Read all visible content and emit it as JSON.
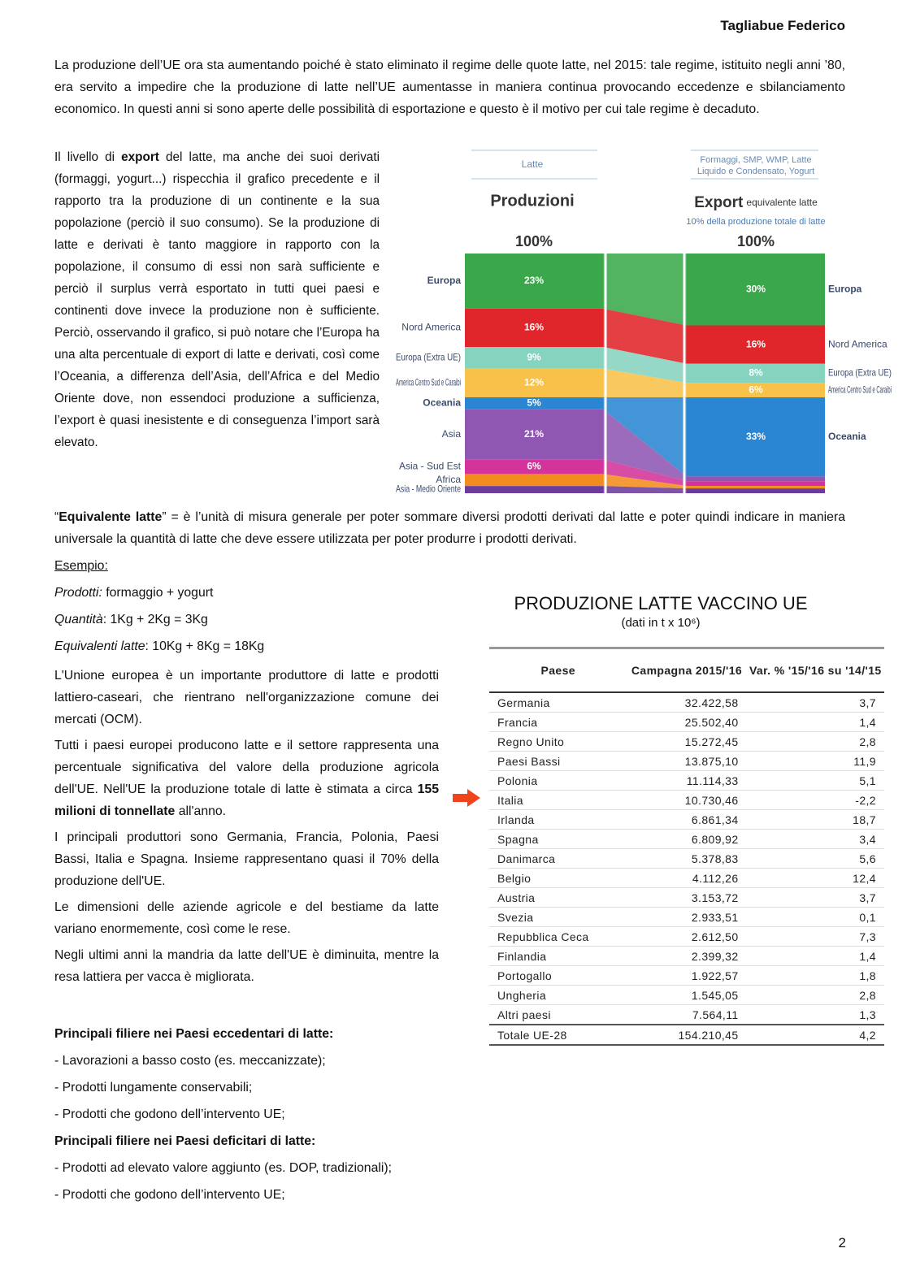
{
  "header": {
    "author": "Tagliabue Federico"
  },
  "intro": "La produzione dell’UE ora sta aumentando poiché è stato eliminato il regime delle quote latte, nel 2015: tale regime, istituito negli anni ’80, era servito a impedire che la produzione di latte nell’UE aumentasse in maniera continua provocando eccedenze e sbilanciamento economico. In questi anni si sono aperte delle possibilità di esportazione e questo è il motivo per cui tale regime è decaduto.",
  "export_text": [
    "Il livello di ",
    "export",
    " del latte, ma anche dei suoi derivati (formaggi, yogurt...) rispecchia il grafico precedente e il rapporto tra la produzione di un continente e la sua popolazione (perciò il suo consumo). Se la produzione di latte e derivati è tanto maggiore in rapporto con la popolazione, il consumo di essi non sarà sufficiente e perciò il surplus verrà esportato in tutti quei paesi e continenti dove invece la produzione non è sufficiente. Perciò, osservando il grafico, si può notare che l’Europa ha una alta percentuale di export di latte e derivati, così come l’Oceania, a differenza dell’Asia, dell’Africa e del Medio Oriente dove, non essendoci produzione a sufficienza, l’export è quasi inesistente e di conseguenza l’import sarà elevato."
  ],
  "chart_data": {
    "type": "stacked-bar",
    "headers": [
      "Latte",
      [
        "Formaggi, SMP, WMP, Latte",
        "Liquido e Condensato, Yogurt"
      ]
    ],
    "categories": [
      "Produzioni",
      "Export"
    ],
    "category_note": "equivalente latte",
    "export_note": "10% della produzione totale di latte",
    "total_labels": [
      "100%",
      "100%"
    ],
    "ylim": [
      0,
      100
    ],
    "series": [
      {
        "name": "Europa",
        "color": "#3aa84a",
        "values": [
          23,
          30
        ],
        "value_labels": [
          "23%",
          "30%"
        ]
      },
      {
        "name": "Nord America",
        "color": "#e0262a",
        "values": [
          16,
          16
        ],
        "value_labels": [
          "16%",
          "16%"
        ]
      },
      {
        "name": "Europa (Extra UE)",
        "color": "#86d3c0",
        "values": [
          9,
          8
        ],
        "value_labels": [
          "9%",
          "8%"
        ]
      },
      {
        "name": "America Centro Sud e Caraibi",
        "color": "#f8c14a",
        "values": [
          12,
          6
        ],
        "value_labels": [
          "12%",
          "6%"
        ]
      },
      {
        "name": "Oceania",
        "color": "#2a86d2",
        "values": [
          5,
          33
        ],
        "value_labels": [
          "5%",
          "33%"
        ]
      },
      {
        "name": "Asia",
        "color": "#8f57b2",
        "values": [
          21,
          2
        ],
        "value_labels": [
          "21%",
          null
        ]
      },
      {
        "name": "Asia - Sud Est",
        "color": "#d3339a",
        "values": [
          6,
          2
        ],
        "value_labels": [
          "6%",
          null
        ]
      },
      {
        "name": "Africa",
        "color": "#f28c1e",
        "values": [
          5,
          1
        ],
        "value_labels": [
          null,
          null
        ]
      },
      {
        "name": "Asia - Medio Oriente",
        "color": "#6b3c9c",
        "values": [
          3,
          2
        ],
        "value_labels": [
          null,
          null
        ]
      }
    ]
  },
  "definition": [
    "“",
    "Equivalente latte",
    "” = è l’unità di misura generale per poter sommare diversi prodotti derivati dal latte e poter quindi indicare in maniera universale la quantità di latte che deve essere utilizzata per poter produrre i prodotti derivati."
  ],
  "example": {
    "title": "Esempio:",
    "lines": [
      [
        "Prodotti:",
        " formaggio + yogurt"
      ],
      [
        "Quantità",
        ": 1Kg + 2Kg = 3Kg"
      ],
      [
        "Equivalenti latte",
        ": 10Kg + 8Kg = 18Kg"
      ]
    ]
  },
  "paragraphs": [
    [
      "L'Unione europea è un importante produttore di latte e prodotti lattiero-caseari, che rientrano nell'organizzazione comune dei mercati (OCM)."
    ],
    [
      "Tutti i paesi europei producono latte e il settore rappresenta una percentuale significativa del valore della produzione agricola dell'UE. Nell'UE la produzione totale di latte è stimata a circa ",
      "155 milioni di tonnellate",
      " all'anno."
    ],
    [
      "I principali produttori sono Germania, Francia, Polonia, Paesi Bassi, Italia e Spagna. Insieme rappresentano quasi il 70% della produzione dell'UE."
    ],
    [
      "Le dimensioni delle aziende agricole e del bestiame da latte variano enormemente, così come le rese."
    ],
    [
      "Negli ultimi anni la mandria da latte dell'UE è diminuita, mentre la resa lattiera per vacca è migliorata."
    ]
  ],
  "lists": [
    {
      "heading": "Principali filiere nei Paesi eccedentari di latte:",
      "items": [
        "- Lavorazioni a basso costo (es. meccanizzate);",
        "- Prodotti lungamente conservabili;",
        "- Prodotti che godono dell’intervento UE;"
      ]
    },
    {
      "heading": "Principali filiere nei Paesi deficitari di latte:",
      "items": [
        "- Prodotti ad elevato valore aggiunto (es. DOP, tradizionali);",
        "- Prodotti che godono dell’intervento UE;"
      ]
    }
  ],
  "table": {
    "title": "PRODUZIONE LATTE VACCINO UE",
    "subtitle": "(dati in t x 10⁶)",
    "header": [
      "Paese",
      "Campagna 2015/'16",
      "Var. % '15/'16 su '14/'15"
    ],
    "rows": [
      [
        "Germania",
        "32.422,58",
        "3,7"
      ],
      [
        "Francia",
        "25.502,40",
        "1,4"
      ],
      [
        "Regno Unito",
        "15.272,45",
        "2,8"
      ],
      [
        "Paesi Bassi",
        "13.875,10",
        "11,9"
      ],
      [
        "Polonia",
        "11.114,33",
        "5,1"
      ],
      [
        "Italia",
        "10.730,46",
        "-2,2"
      ],
      [
        "Irlanda",
        "6.861,34",
        "18,7"
      ],
      [
        "Spagna",
        "6.809,92",
        "3,4"
      ],
      [
        "Danimarca",
        "5.378,83",
        "5,6"
      ],
      [
        "Belgio",
        "4.112,26",
        "12,4"
      ],
      [
        "Austria",
        "3.153,72",
        "3,7"
      ],
      [
        "Svezia",
        "2.933,51",
        "0,1"
      ],
      [
        "Repubblica Ceca",
        "2.612,50",
        "7,3"
      ],
      [
        "Finlandia",
        "2.399,32",
        "1,4"
      ],
      [
        "Portogallo",
        "1.922,57",
        "1,8"
      ],
      [
        "Ungheria",
        "1.545,05",
        "2,8"
      ],
      [
        "Altri paesi",
        "7.564,11",
        "1,3"
      ],
      [
        "Totale UE-28",
        "154.210,45",
        "4,2"
      ]
    ]
  },
  "footer": {
    "page": "2"
  }
}
